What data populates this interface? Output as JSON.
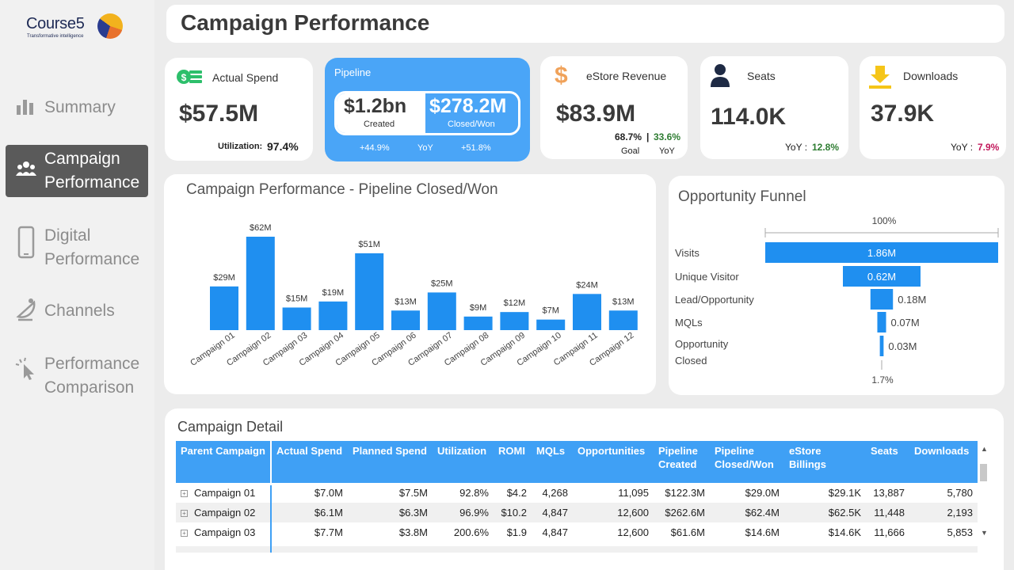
{
  "brand": {
    "name_main": "Course",
    "name_num": "5",
    "tagline": "Transformative intelligence"
  },
  "nav": [
    {
      "label": "Summary",
      "icon": "bar-chart-icon",
      "active": false
    },
    {
      "label": "Campaign\nPerformance",
      "icon": "people-icon",
      "active": true
    },
    {
      "label": "Digital\nPerformance",
      "icon": "phone-icon",
      "active": false
    },
    {
      "label": "Channels",
      "icon": "satellite-icon",
      "active": false
    },
    {
      "label": "Performance\nComparison",
      "icon": "click-icon",
      "active": false
    }
  ],
  "page_title": "Campaign Performance",
  "kpis": {
    "actual_spend": {
      "label": "Actual Spend",
      "value": "$57.5M",
      "sub_label": "Utilization:",
      "sub_value": "97.4%"
    },
    "pipeline": {
      "label": "Pipeline",
      "created_value": "$1.2bn",
      "created_label": "Created",
      "closed_value": "$278.2M",
      "closed_label": "Closed/Won",
      "created_yoy": "+44.9%",
      "yoy_label": "YoY",
      "closed_yoy": "+51.8%"
    },
    "estore": {
      "label": "eStore Revenue",
      "value": "$83.9M",
      "goal_value": "68.7%",
      "sep": "|",
      "yoy_value": "33.6%",
      "goal_label": "Goal",
      "yoy_label": "YoY"
    },
    "seats": {
      "label": "Seats",
      "value": "114.0K",
      "yoy_label": "YoY :",
      "yoy_value": "12.8%"
    },
    "downloads": {
      "label": "Downloads",
      "value": "37.9K",
      "yoy_label": "YoY :",
      "yoy_value": "7.9%"
    }
  },
  "colors": {
    "accent": "#3fa0f5",
    "bar": "#1f8ff0",
    "positive": "#2e7d32",
    "negative": "#c2185b"
  },
  "chart_data": [
    {
      "type": "bar",
      "title": "Campaign Performance - Pipeline Closed/Won",
      "categories": [
        "Campaign 01",
        "Campaign 02",
        "Campaign 03",
        "Campaign 04",
        "Campaign 05",
        "Campaign 06",
        "Campaign 07",
        "Campaign 08",
        "Campaign 09",
        "Campaign 10",
        "Campaign 11",
        "Campaign 12"
      ],
      "values": [
        29,
        62,
        15,
        19,
        51,
        13,
        25,
        9,
        12,
        7,
        24,
        13
      ],
      "data_labels": [
        "$29M",
        "$62M",
        "$15M",
        "$19M",
        "$51M",
        "$13M",
        "$25M",
        "$9M",
        "$12M",
        "$7M",
        "$24M",
        "$13M"
      ],
      "ylim": [
        0,
        62
      ],
      "xlabel": "",
      "ylabel": ""
    },
    {
      "type": "bar",
      "title": "Opportunity Funnel",
      "top_label": "100%",
      "bottom_label": "1.7%",
      "categories": [
        "Visits",
        "Unique Visitor",
        "Lead/Opportunity",
        "MQLs",
        "Opportunity\nClosed"
      ],
      "values": [
        1.86,
        0.62,
        0.18,
        0.07,
        0.03
      ],
      "data_labels": [
        "1.86M",
        "0.62M",
        "0.18M",
        "0.07M",
        "0.03M"
      ],
      "unit": "M"
    }
  ],
  "table": {
    "title": "Campaign Detail",
    "columns": [
      "Parent Campaign",
      "Actual Spend",
      "Planned Spend",
      "Utilization",
      "ROMI",
      "MQLs",
      "Opportunities",
      "Pipeline\nCreated",
      "Pipeline\nClosed/Won",
      "eStore Billings",
      "Seats",
      "Downloads"
    ],
    "rows": [
      [
        "Campaign 01",
        "$7.0M",
        "$7.5M",
        "92.8%",
        "$4.2",
        "4,268",
        "11,095",
        "$122.3M",
        "$29.0M",
        "$29.1K",
        "13,887",
        "5,780"
      ],
      [
        "Campaign 02",
        "$6.1M",
        "$6.3M",
        "96.9%",
        "$10.2",
        "4,847",
        "12,600",
        "$262.6M",
        "$62.4M",
        "$62.5K",
        "11,448",
        "2,193"
      ],
      [
        "Campaign 03",
        "$7.7M",
        "$3.8M",
        "200.6%",
        "$1.9",
        "4,847",
        "12,600",
        "$61.6M",
        "$14.6M",
        "$14.6K",
        "11,666",
        "5,853"
      ]
    ]
  }
}
